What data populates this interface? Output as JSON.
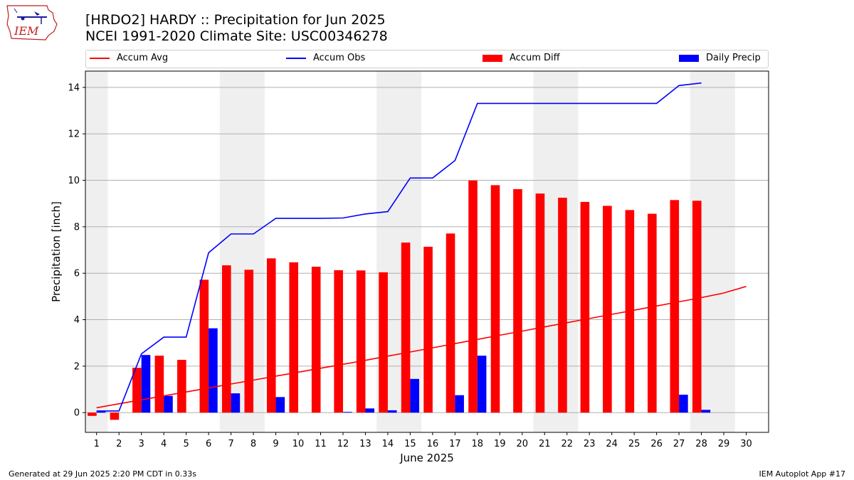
{
  "logo": {
    "text": "IEM"
  },
  "header": {
    "title_line1": "[HRDO2] HARDY :: Precipitation for Jun 2025",
    "title_line2": "NCEI 1991-2020 Climate Site: USC00346278"
  },
  "legend": [
    {
      "label": "Accum Avg",
      "color": "#ff0000",
      "kind": "line"
    },
    {
      "label": "Accum Obs",
      "color": "#0000ff",
      "kind": "line"
    },
    {
      "label": "Accum Diff",
      "color": "#ff0000",
      "kind": "bar"
    },
    {
      "label": "Daily Precip",
      "color": "#0000ff",
      "kind": "bar"
    }
  ],
  "footer": {
    "left": "Generated at 29 Jun 2025 2:20 PM CDT in 0.33s",
    "right": "IEM Autoplot App #17"
  },
  "chart_data": {
    "type": "bar",
    "xlabel": "June 2025",
    "ylabel": "Precipitation [inch]",
    "xlim": [
      0.5,
      31.0
    ],
    "ylim": [
      -0.85,
      14.7
    ],
    "yticks": [
      0,
      2,
      4,
      6,
      8,
      10,
      12,
      14
    ],
    "xticks": [
      1,
      2,
      3,
      4,
      5,
      6,
      7,
      8,
      9,
      10,
      11,
      12,
      13,
      14,
      15,
      16,
      17,
      18,
      19,
      20,
      21,
      22,
      23,
      24,
      25,
      26,
      27,
      28,
      29,
      30
    ],
    "grid": "horizontal",
    "weekend_shading": [
      [
        0.5,
        1.5
      ],
      [
        6.5,
        8.5
      ],
      [
        13.5,
        15.5
      ],
      [
        20.5,
        22.5
      ],
      [
        27.5,
        29.5
      ]
    ],
    "colors": {
      "avg": "#ff0000",
      "obs": "#0000ff",
      "diff": "#ff0000",
      "daily": "#0000ff",
      "weekend": "#efefef"
    },
    "series": [
      {
        "name": "Accum Avg",
        "kind": "line",
        "x": [
          1,
          2,
          3,
          4,
          5,
          6,
          7,
          8,
          9,
          10,
          11,
          12,
          13,
          14,
          15,
          16,
          17,
          18,
          19,
          20,
          21,
          22,
          23,
          24,
          25,
          26,
          27,
          28,
          29,
          30
        ],
        "values": [
          0.21,
          0.38,
          0.55,
          0.72,
          0.89,
          1.06,
          1.23,
          1.4,
          1.57,
          1.74,
          1.91,
          2.08,
          2.25,
          2.43,
          2.61,
          2.79,
          2.97,
          3.15,
          3.33,
          3.51,
          3.69,
          3.87,
          4.05,
          4.23,
          4.41,
          4.59,
          4.77,
          4.95,
          5.15,
          5.43
        ]
      },
      {
        "name": "Accum Obs",
        "kind": "line",
        "x": [
          1,
          2,
          3,
          4,
          5,
          6,
          7,
          8,
          9,
          10,
          11,
          12,
          13,
          14,
          15,
          16,
          17,
          18,
          19,
          20,
          21,
          22,
          23,
          24,
          25,
          26,
          27,
          28
        ],
        "values": [
          0.07,
          0.07,
          2.53,
          3.25,
          3.25,
          6.88,
          7.69,
          7.69,
          8.36,
          8.36,
          8.36,
          8.38,
          8.55,
          8.65,
          10.1,
          10.1,
          10.85,
          13.31,
          13.31,
          13.31,
          13.31,
          13.31,
          13.31,
          13.31,
          13.31,
          13.31,
          14.08,
          14.19
        ]
      },
      {
        "name": "Accum Diff",
        "kind": "bar",
        "x": [
          1,
          2,
          3,
          4,
          5,
          6,
          7,
          8,
          9,
          10,
          11,
          12,
          13,
          14,
          15,
          16,
          17,
          18,
          19,
          20,
          21,
          22,
          23,
          24,
          25,
          26,
          27,
          28
        ],
        "values": [
          -0.14,
          -0.31,
          1.93,
          2.45,
          2.27,
          5.72,
          6.34,
          6.15,
          6.64,
          6.47,
          6.28,
          6.13,
          6.12,
          6.04,
          7.32,
          7.14,
          7.71,
          9.99,
          9.79,
          9.62,
          9.43,
          9.25,
          9.07,
          8.9,
          8.72,
          8.56,
          9.15,
          9.12
        ]
      },
      {
        "name": "Daily Precip",
        "kind": "bar",
        "x": [
          1,
          2,
          3,
          4,
          5,
          6,
          7,
          8,
          9,
          10,
          11,
          12,
          13,
          14,
          15,
          16,
          17,
          18,
          19,
          20,
          21,
          22,
          23,
          24,
          25,
          26,
          27,
          28
        ],
        "values": [
          0.07,
          0.0,
          2.48,
          0.72,
          0.0,
          3.63,
          0.83,
          0.0,
          0.67,
          0.0,
          0.0,
          0.03,
          0.18,
          0.1,
          1.45,
          0.0,
          0.75,
          2.45,
          0.0,
          0.0,
          0.0,
          0.0,
          0.0,
          0.0,
          0.0,
          0.0,
          0.77,
          0.12
        ]
      }
    ]
  }
}
